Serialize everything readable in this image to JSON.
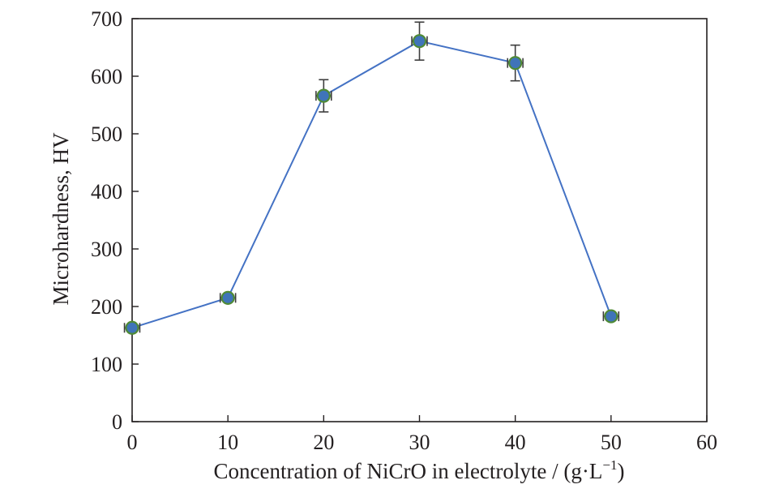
{
  "chart_data": {
    "type": "line",
    "xlabel": "Concentration of NiCrO in electrolyte / (g·L",
    "xlabel_superscript": "−1",
    "xlabel_close": ")",
    "ylabel": "Microhardness, HV",
    "xlim": [
      0,
      60
    ],
    "ylim": [
      0,
      700
    ],
    "xticks": [
      0,
      10,
      20,
      30,
      40,
      50,
      60
    ],
    "yticks": [
      0,
      100,
      200,
      300,
      400,
      500,
      600,
      700
    ],
    "grid": false,
    "series": [
      {
        "x": [
          0,
          10,
          20,
          30,
          40,
          50
        ],
        "y": [
          163,
          215,
          566,
          661,
          623,
          183
        ],
        "y_error": [
          6,
          6,
          28,
          33,
          31,
          6
        ],
        "x_error": [
          0.8,
          0.8,
          0.8,
          0.8,
          0.8,
          0.8
        ]
      }
    ],
    "colors": {
      "line": "#4472c4",
      "marker_fill": "#3f74b9",
      "marker_edge": "#4f8a36",
      "error_bar": "#3d3d3d",
      "axis": "#231f20"
    }
  }
}
